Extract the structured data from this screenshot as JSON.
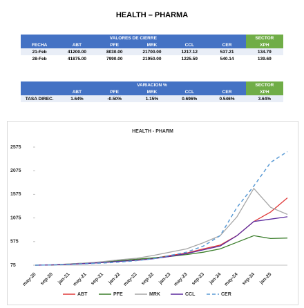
{
  "header": {
    "title": "HEALTH – PHARMA"
  },
  "table1": {
    "group": "VALORES DE CIERRE",
    "sector": "SECTOR",
    "columns": [
      "FECHA",
      "ABT",
      "PFE",
      "MRK",
      "CCL",
      "CER",
      "XPH"
    ],
    "rows": [
      [
        "21-Feb",
        "41200.00",
        "8030.00",
        "21700.00",
        "1217.12",
        "537.21",
        "134.79"
      ],
      [
        "28-Feb",
        "41875.00",
        "7990.00",
        "21950.00",
        "1225.59",
        "540.14",
        "139.69"
      ]
    ]
  },
  "table2": {
    "group": "VARIACION %",
    "sector": "SECTOR",
    "columns": [
      "ABT",
      "PFE",
      "MRK",
      "CCL",
      "CER",
      "XPH"
    ],
    "rows": [
      [
        "TASA DIREC.",
        "1.64%",
        "-0.50%",
        "1.15%",
        "0.696%",
        "0.546%",
        "3.64%"
      ]
    ]
  },
  "chart_data": {
    "type": "line",
    "title": "HEALTH - PHARM",
    "categories": [
      "may-20",
      "sep-20",
      "jan-21",
      "may-21",
      "sep-21",
      "jan-22",
      "may-22",
      "sep-22",
      "jan-23",
      "may-23",
      "sep-23",
      "jan-24",
      "may-24",
      "sep-24",
      "jan-25",
      null
    ],
    "ylim": [
      75,
      2575
    ],
    "yticks": [
      75,
      575,
      1075,
      1575,
      2075,
      2575
    ],
    "series": [
      {
        "name": "ABT",
        "color": "#e03a3a",
        "values": [
          75,
          80,
          95,
          110,
          130,
          160,
          180,
          220,
          280,
          330,
          420,
          500,
          700,
          1000,
          1200,
          1500
        ]
      },
      {
        "name": "PFE",
        "color": "#3a7d2a",
        "values": [
          75,
          80,
          100,
          120,
          140,
          170,
          200,
          230,
          260,
          300,
          350,
          420,
          560,
          700,
          640,
          650
        ]
      },
      {
        "name": "MRK",
        "color": "#a6a6a6",
        "values": [
          75,
          85,
          100,
          120,
          150,
          190,
          220,
          280,
          350,
          420,
          550,
          700,
          1100,
          1700,
          1300,
          1150
        ]
      },
      {
        "name": "CCL",
        "color": "#5b2a9e",
        "values": [
          75,
          80,
          95,
          110,
          130,
          155,
          175,
          210,
          260,
          320,
          400,
          480,
          700,
          1000,
          1050,
          1100
        ]
      },
      {
        "name": "CER",
        "color": "#5b9bd5",
        "dashed": true,
        "values": [
          75,
          80,
          90,
          105,
          120,
          140,
          170,
          210,
          280,
          350,
          480,
          700,
          1300,
          1750,
          2250,
          2480
        ]
      }
    ]
  }
}
